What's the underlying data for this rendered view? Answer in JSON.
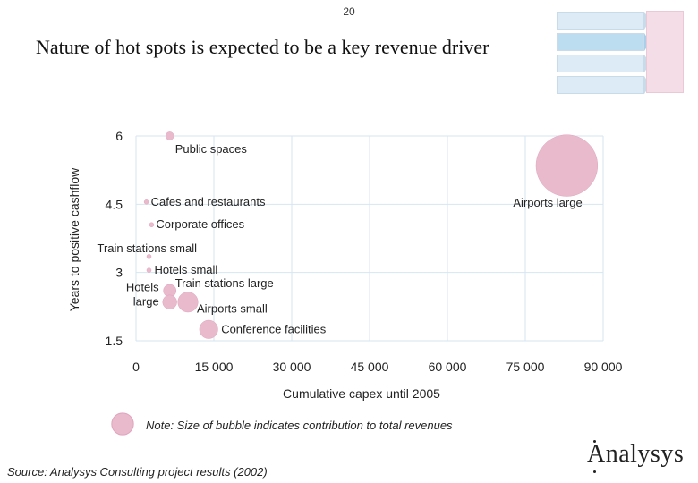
{
  "page_number": "20",
  "title": "Nature of hot spots is expected to be a key revenue driver",
  "legend_note": "Note: Size of bubble indicates contribution to total revenues",
  "source": "Source: Analysys Consulting project results (2002)",
  "logo": "Analysys",
  "colors": {
    "bubble": "#e9b9cc",
    "bubble_stroke": "#e0a5bd",
    "grid": "#d6e6f2",
    "axis_text": "#222222"
  },
  "chart_data": {
    "type": "scatter",
    "title": "",
    "xlabel": "Cumulative capex until 2005",
    "ylabel": "Years to positive cashflow",
    "xlim": [
      0,
      90000
    ],
    "ylim": [
      1.5,
      6
    ],
    "x_ticks": [
      0,
      15000,
      30000,
      45000,
      60000,
      75000,
      90000
    ],
    "x_tick_labels": [
      "0",
      "15 000",
      "30 000",
      "45 000",
      "60 000",
      "75 000",
      "90 000"
    ],
    "y_ticks": [
      1.5,
      3,
      4.5,
      6
    ],
    "y_tick_labels": [
      "1.5",
      "3",
      "4.5",
      "6"
    ],
    "grid": true,
    "points": [
      {
        "name": "Public spaces",
        "label": "Public spaces",
        "x": 6500,
        "y": 6.0,
        "size": 0.5
      },
      {
        "name": "Cafes and restaurants",
        "label": "Cafes and restaurants",
        "x": 2000,
        "y": 4.55,
        "size": 0.1
      },
      {
        "name": "Corporate offices",
        "label": "Corporate offices",
        "x": 3000,
        "y": 4.05,
        "size": 0.15
      },
      {
        "name": "Train stations small",
        "label": "Train stations small",
        "x": 2500,
        "y": 3.35,
        "size": 0.1
      },
      {
        "name": "Hotels small",
        "label": "Hotels small",
        "x": 2500,
        "y": 3.05,
        "size": 0.15
      },
      {
        "name": "Train stations large",
        "label": "Train stations large",
        "x": 6500,
        "y": 2.6,
        "size": 1.2
      },
      {
        "name": "Hotels large",
        "label": "Hotels\nlarge",
        "x": 6500,
        "y": 2.35,
        "size": 1.5
      },
      {
        "name": "Airports small",
        "label": "Airports small",
        "x": 10000,
        "y": 2.35,
        "size": 3.0
      },
      {
        "name": "Conference facilities",
        "label": "Conference facilities",
        "x": 14000,
        "y": 1.75,
        "size": 2.5
      },
      {
        "name": "Airports large",
        "label": "Airports large",
        "x": 83000,
        "y": 5.35,
        "size": 28
      }
    ],
    "legend_bubble_size": 3.5
  }
}
